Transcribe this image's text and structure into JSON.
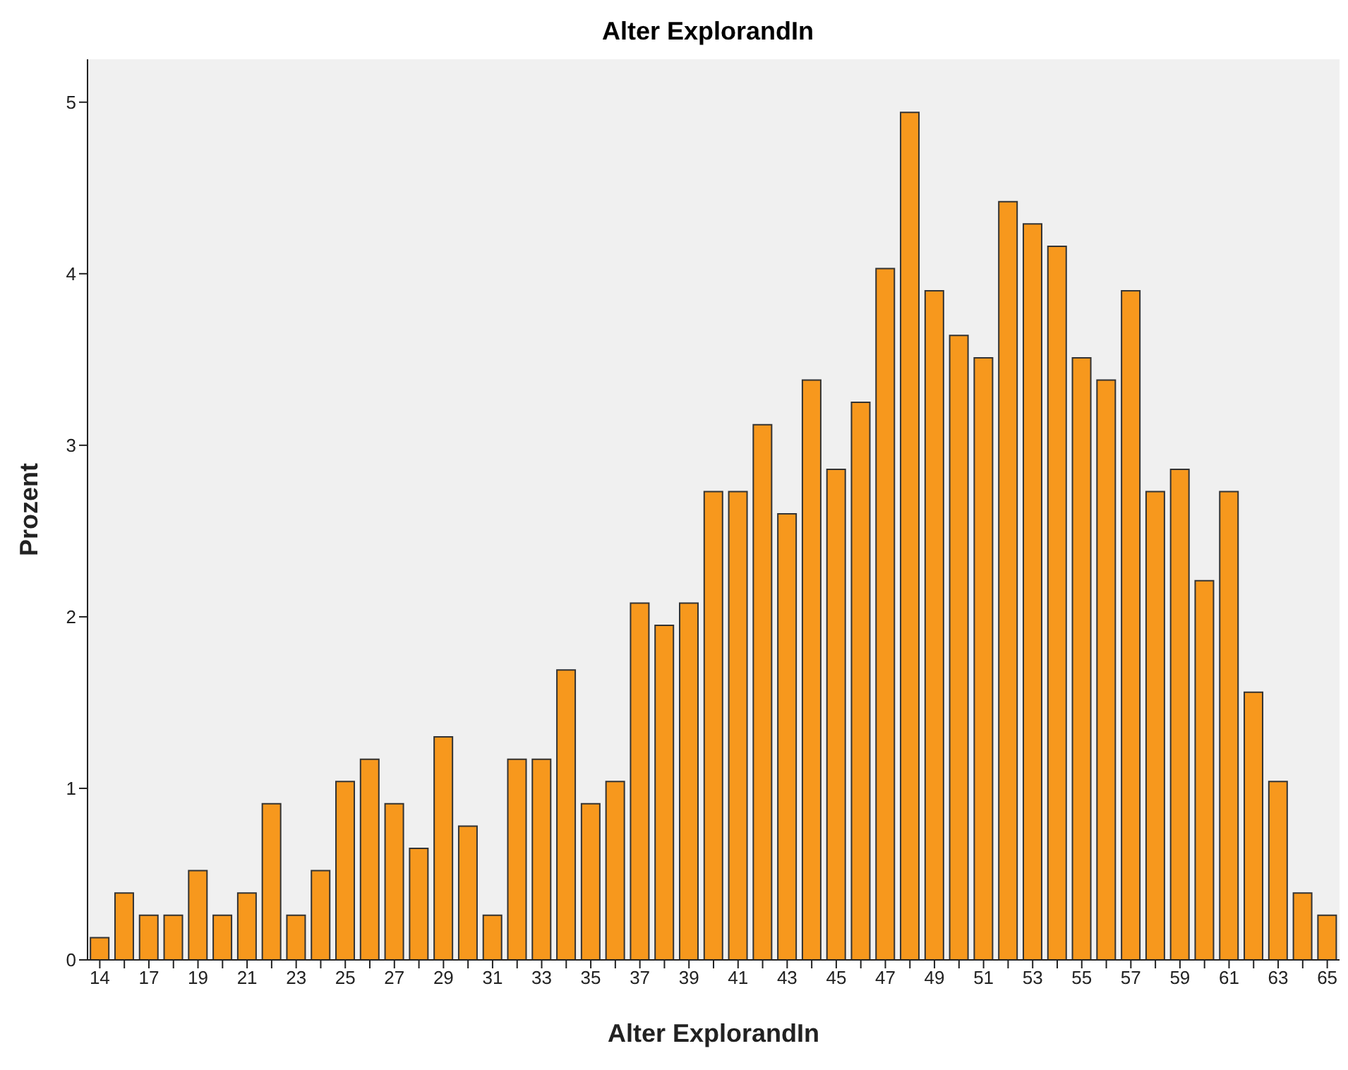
{
  "chart_data": {
    "type": "bar",
    "title": "Alter ExplorandIn",
    "xlabel": "Alter ExplorandIn",
    "ylabel": "Prozent",
    "categories": [
      "14",
      null,
      "17",
      null,
      "19",
      null,
      "21",
      null,
      "23",
      null,
      "25",
      null,
      "27",
      null,
      "29",
      null,
      "31",
      null,
      "33",
      null,
      "35",
      null,
      "37",
      null,
      "39",
      null,
      "41",
      null,
      "43",
      null,
      "45",
      null,
      "47",
      null,
      "49",
      null,
      "51",
      null,
      "53",
      null,
      "55",
      null,
      "57",
      null,
      "59",
      null,
      "61",
      null,
      "63",
      null,
      "65"
    ],
    "values": [
      0.13,
      0.39,
      0.26,
      0.26,
      0.52,
      0.26,
      0.39,
      0.91,
      0.26,
      0.52,
      1.04,
      1.17,
      0.91,
      0.65,
      1.3,
      0.78,
      0.26,
      1.17,
      1.17,
      1.69,
      0.91,
      1.04,
      2.08,
      1.95,
      2.08,
      2.73,
      2.73,
      3.12,
      2.6,
      3.38,
      2.86,
      3.25,
      4.03,
      4.94,
      3.9,
      3.64,
      3.51,
      4.42,
      4.29,
      4.16,
      3.51,
      3.38,
      3.9,
      2.73,
      2.86,
      2.21,
      2.73,
      1.56,
      1.04,
      0.39,
      0.26
    ],
    "color": "#f7981d",
    "ylim": [
      0,
      5.25
    ],
    "yticks": [
      0,
      1,
      2,
      3,
      4,
      5
    ],
    "grid": false
  }
}
